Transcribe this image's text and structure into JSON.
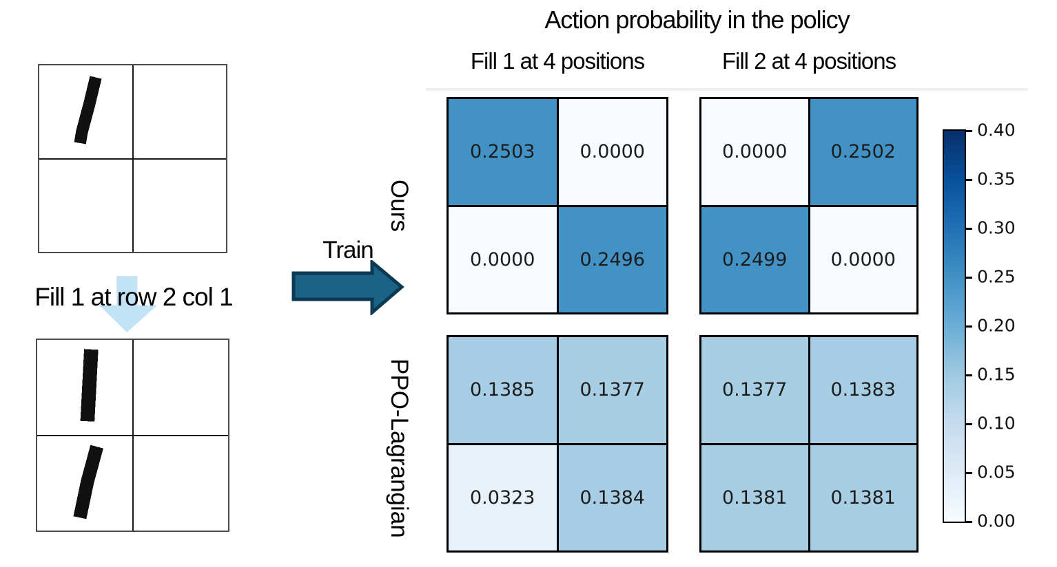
{
  "figure": {
    "title": "Action probability in the policy",
    "train_label": "Train",
    "action_label": "Fill 1 at row 2 col 1"
  },
  "left_panel": {
    "grid_before": {
      "cells": [
        [
          "1",
          ""
        ],
        [
          "",
          ""
        ]
      ]
    },
    "grid_after": {
      "cells": [
        [
          "1",
          ""
        ],
        [
          "1",
          ""
        ]
      ]
    }
  },
  "chart_data": {
    "type": "heatmap",
    "title": "Action probability in the policy",
    "colormap": "Blues",
    "vmin": 0.0,
    "vmax": 0.4,
    "grid": false,
    "value_format_decimals": 4,
    "col_headers": [
      "Fill 1 at 4 positions",
      "Fill 2 at 4 positions"
    ],
    "row_labels": [
      "Ours",
      "PPO-Lagrangian"
    ],
    "matrices": {
      "ours_fill1": [
        [
          0.2503,
          0.0
        ],
        [
          0.0,
          0.2496
        ]
      ],
      "ours_fill2": [
        [
          0.0,
          0.2502
        ],
        [
          0.2499,
          0.0
        ]
      ],
      "ppo_fill1": [
        [
          0.1385,
          0.1377
        ],
        [
          0.0323,
          0.1384
        ]
      ],
      "ppo_fill2": [
        [
          0.1377,
          0.1383
        ],
        [
          0.1381,
          0.1381
        ]
      ]
    },
    "colorbar": {
      "position": "right",
      "ticks": [
        0.4,
        0.35,
        0.3,
        0.25,
        0.2,
        0.15,
        0.1,
        0.05,
        0.0
      ],
      "tick_labels": [
        "0.40",
        "0.35",
        "0.30",
        "0.25",
        "0.20",
        "0.15",
        "0.10",
        "0.05",
        "0.00"
      ]
    },
    "colors": {
      "cmap_low": "#f7fbff",
      "cmap_high": "#08306b",
      "value_025_cell": "#4292c6",
      "value_0138_cell": "#a7cde4",
      "train_arrow_fill": "#1a6286",
      "train_arrow_stroke": "#0d3a52",
      "down_arrow_fill": "#c2e2f5"
    }
  }
}
